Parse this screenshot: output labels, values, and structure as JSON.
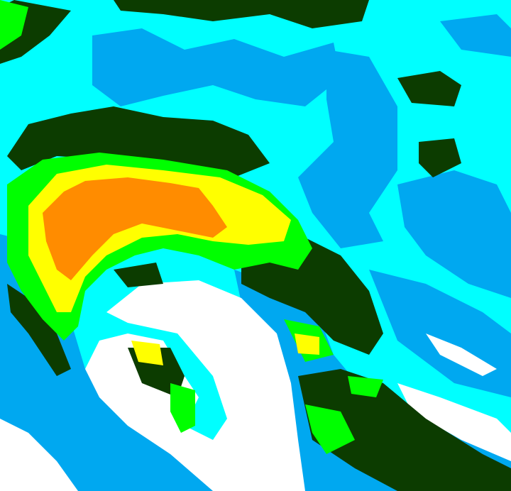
{
  "image": {
    "kind": "false-color satellite cloud-top imagery of a storm system",
    "palette": {
      "background": "#00ffff",
      "low": "#00a8f0",
      "clear": "#ffffff",
      "dark_green": "#0c3c00",
      "green": "#00ff00",
      "yellow": "#ffff00",
      "orange": "#ff8c00"
    }
  }
}
